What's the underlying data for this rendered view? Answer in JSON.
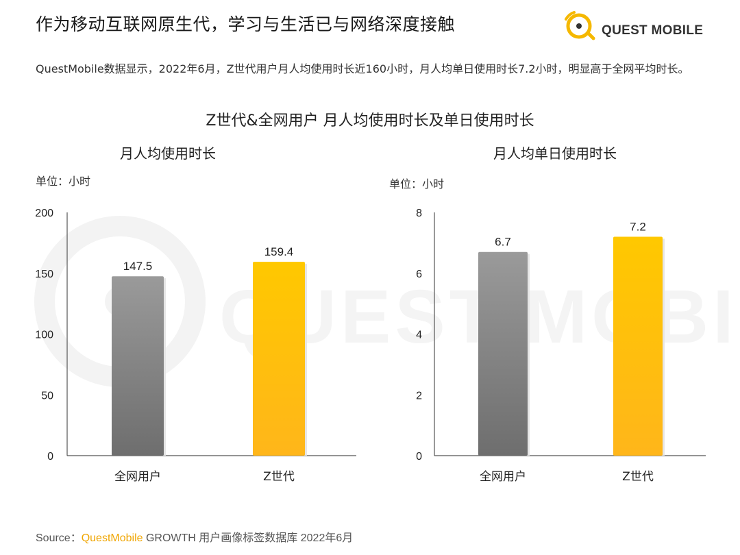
{
  "headline": "作为移动互联网原生代，学习与生活已与网络深度接触",
  "logo": {
    "text": "QUEST MOBILE",
    "accent": "#f5b800"
  },
  "summary": "QuestMobile数据显示，2022年6月，Z世代用户月人均使用时长近160小时，月人均单日使用时长7.2小时，明显高于全网平均时长。",
  "main_title": "Z世代&全网用户 月人均使用时长及单日使用时长",
  "source": {
    "label": "Source：",
    "brand": "QuestMobile",
    "rest": " GROWTH 用户画像标签数据库 2022年6月"
  },
  "colors": {
    "gray": "#8a8a8a",
    "yellow": "#ffc000",
    "axis": "#555555"
  },
  "chart_data": [
    {
      "type": "bar",
      "title": "月人均使用时长",
      "unit_label": "单位：小时",
      "categories": [
        "全网用户",
        "Z世代"
      ],
      "values": [
        147.5,
        159.4
      ],
      "value_labels": [
        "147.5",
        "159.4"
      ],
      "bar_colors": [
        "gray",
        "yellow"
      ],
      "ylim": [
        0,
        200
      ],
      "yticks": [
        0,
        50,
        100,
        150,
        200
      ]
    },
    {
      "type": "bar",
      "title": "月人均单日使用时长",
      "unit_label": "单位：小时",
      "categories": [
        "全网用户",
        "Z世代"
      ],
      "values": [
        6.7,
        7.2
      ],
      "value_labels": [
        "6.7",
        "7.2"
      ],
      "bar_colors": [
        "gray",
        "yellow"
      ],
      "ylim": [
        0,
        8
      ],
      "yticks": [
        0,
        2,
        4,
        6,
        8
      ]
    }
  ]
}
